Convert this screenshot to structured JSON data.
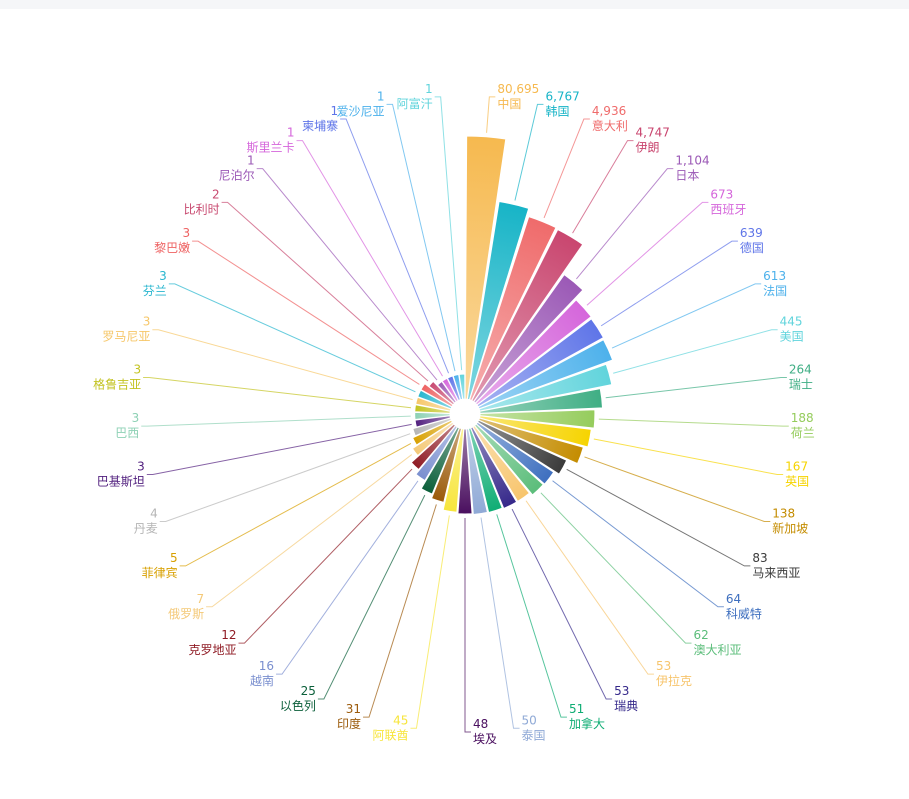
{
  "chart_data": {
    "type": "rose",
    "series": [
      {
        "name": "中国",
        "value": 80695,
        "label": "80,695",
        "color": "#f6b94f"
      },
      {
        "name": "韩国",
        "value": 6767,
        "label": "6,767",
        "color": "#17b4c7"
      },
      {
        "name": "意大利",
        "value": 4936,
        "label": "4,936",
        "color": "#ef6b6b"
      },
      {
        "name": "伊朗",
        "value": 4747,
        "label": "4,747",
        "color": "#c9466f"
      },
      {
        "name": "日本",
        "value": 1104,
        "label": "1,104",
        "color": "#9b59b6"
      },
      {
        "name": "西班牙",
        "value": 673,
        "label": "673",
        "color": "#d566db"
      },
      {
        "name": "德国",
        "value": 639,
        "label": "639",
        "color": "#5f75e8"
      },
      {
        "name": "法国",
        "value": 613,
        "label": "613",
        "color": "#4db1eb"
      },
      {
        "name": "美国",
        "value": 445,
        "label": "445",
        "color": "#61d4dc"
      },
      {
        "name": "瑞士",
        "value": 264,
        "label": "264",
        "color": "#3fae84"
      },
      {
        "name": "荷兰",
        "value": 188,
        "label": "188",
        "color": "#95cc5c"
      },
      {
        "name": "英国",
        "value": 167,
        "label": "167",
        "color": "#f6d400"
      },
      {
        "name": "新加坡",
        "value": 138,
        "label": "138",
        "color": "#c48c00"
      },
      {
        "name": "马来西亚",
        "value": 83,
        "label": "83",
        "color": "#3a3a3a"
      },
      {
        "name": "科威特",
        "value": 64,
        "label": "64",
        "color": "#3e6fbf"
      },
      {
        "name": "澳大利亚",
        "value": 62,
        "label": "62",
        "color": "#5bbd7a"
      },
      {
        "name": "伊拉克",
        "value": 53,
        "label": "53",
        "color": "#f7c56d"
      },
      {
        "name": "瑞典",
        "value": 53,
        "label": "53",
        "color": "#35288a"
      },
      {
        "name": "加拿大",
        "value": 51,
        "label": "51",
        "color": "#0fad74"
      },
      {
        "name": "泰国",
        "value": 50,
        "label": "50",
        "color": "#8fa9d6"
      },
      {
        "name": "埃及",
        "value": 48,
        "label": "48",
        "color": "#4a0f5f"
      },
      {
        "name": "阿联酋",
        "value": 45,
        "label": "45",
        "color": "#f7e53b"
      },
      {
        "name": "印度",
        "value": 31,
        "label": "31",
        "color": "#9b5a0a"
      },
      {
        "name": "以色列",
        "value": 25,
        "label": "25",
        "color": "#0b5f3a"
      },
      {
        "name": "越南",
        "value": 16,
        "label": "16",
        "color": "#7a8fcf"
      },
      {
        "name": "克罗地亚",
        "value": 12,
        "label": "12",
        "color": "#8f1b24"
      },
      {
        "name": "俄罗斯",
        "value": 7,
        "label": "7",
        "color": "#f4c978"
      },
      {
        "name": "菲律宾",
        "value": 5,
        "label": "5",
        "color": "#d8a000"
      },
      {
        "name": "丹麦",
        "value": 4,
        "label": "4",
        "color": "#b5b5b5"
      },
      {
        "name": "巴基斯坦",
        "value": 3,
        "label": "3",
        "color": "#52207f"
      },
      {
        "name": "巴西",
        "value": 3,
        "label": "3",
        "color": "#8ed1b5"
      },
      {
        "name": "格鲁吉亚",
        "value": 3,
        "label": "3",
        "color": "#c3c321"
      },
      {
        "name": "罗马尼亚",
        "value": 3,
        "label": "3",
        "color": "#f6c76a"
      },
      {
        "name": "芬兰",
        "value": 3,
        "label": "3",
        "color": "#28b6cf"
      },
      {
        "name": "黎巴嫩",
        "value": 3,
        "label": "3",
        "color": "#ee6262"
      },
      {
        "name": "比利时",
        "value": 2,
        "label": "2",
        "color": "#c84a70"
      },
      {
        "name": "尼泊尔",
        "value": 1,
        "label": "1",
        "color": "#9b59b6"
      },
      {
        "name": "斯里兰卡",
        "value": 1,
        "label": "1",
        "color": "#d566db"
      },
      {
        "name": "柬埔寨",
        "value": 1,
        "label": "1",
        "color": "#5f75e8"
      },
      {
        "name": "爱沙尼亚",
        "value": 1,
        "label": "1",
        "color": "#4db1eb"
      },
      {
        "name": "阿富汗",
        "value": 1,
        "label": "1",
        "color": "#61d4dc"
      }
    ]
  }
}
